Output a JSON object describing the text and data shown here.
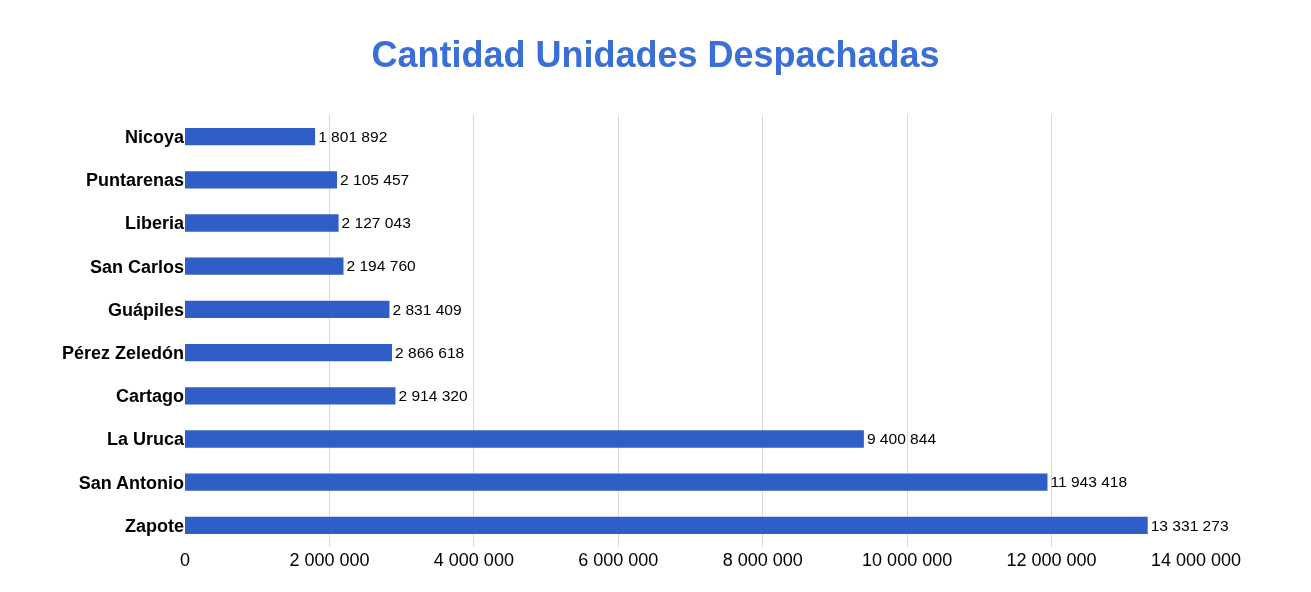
{
  "chart_data": {
    "type": "bar",
    "orientation": "horizontal",
    "title": "Cantidad Unidades Despachadas",
    "categories": [
      "Nicoya",
      "Puntarenas",
      "Liberia",
      "San Carlos",
      "Guápiles",
      "Pérez Zeledón",
      "Cartago",
      "La Uruca",
      "San Antonio",
      "Zapote"
    ],
    "values": [
      1801892,
      2105457,
      2127043,
      2194760,
      2831409,
      2866618,
      2914320,
      9400844,
      11943418,
      13331273
    ],
    "value_labels": [
      "1 801 892",
      "2 105 457",
      "2 127 043",
      "2 194 760",
      "2 831 409",
      "2 866 618",
      "2 914 320",
      "9 400 844",
      "11 943 418",
      "13 331 273"
    ],
    "color": "#2f5fc6",
    "xlim": [
      0,
      14000000
    ],
    "xticks": [
      0,
      {
        "value": 2000000,
        "label": "2 000 000"
      },
      {
        "value": 4000000,
        "label": "4 000 000"
      },
      {
        "value": 6000000,
        "label": "6 000 000"
      },
      {
        "value": 8000000,
        "label": "8 000 000"
      },
      {
        "value": 10000000,
        "label": "10 000 000"
      },
      {
        "value": 12000000,
        "label": "12 000 000"
      },
      {
        "value": 14000000,
        "label": "14 000 000"
      }
    ],
    "grid": "x",
    "legend": false
  }
}
